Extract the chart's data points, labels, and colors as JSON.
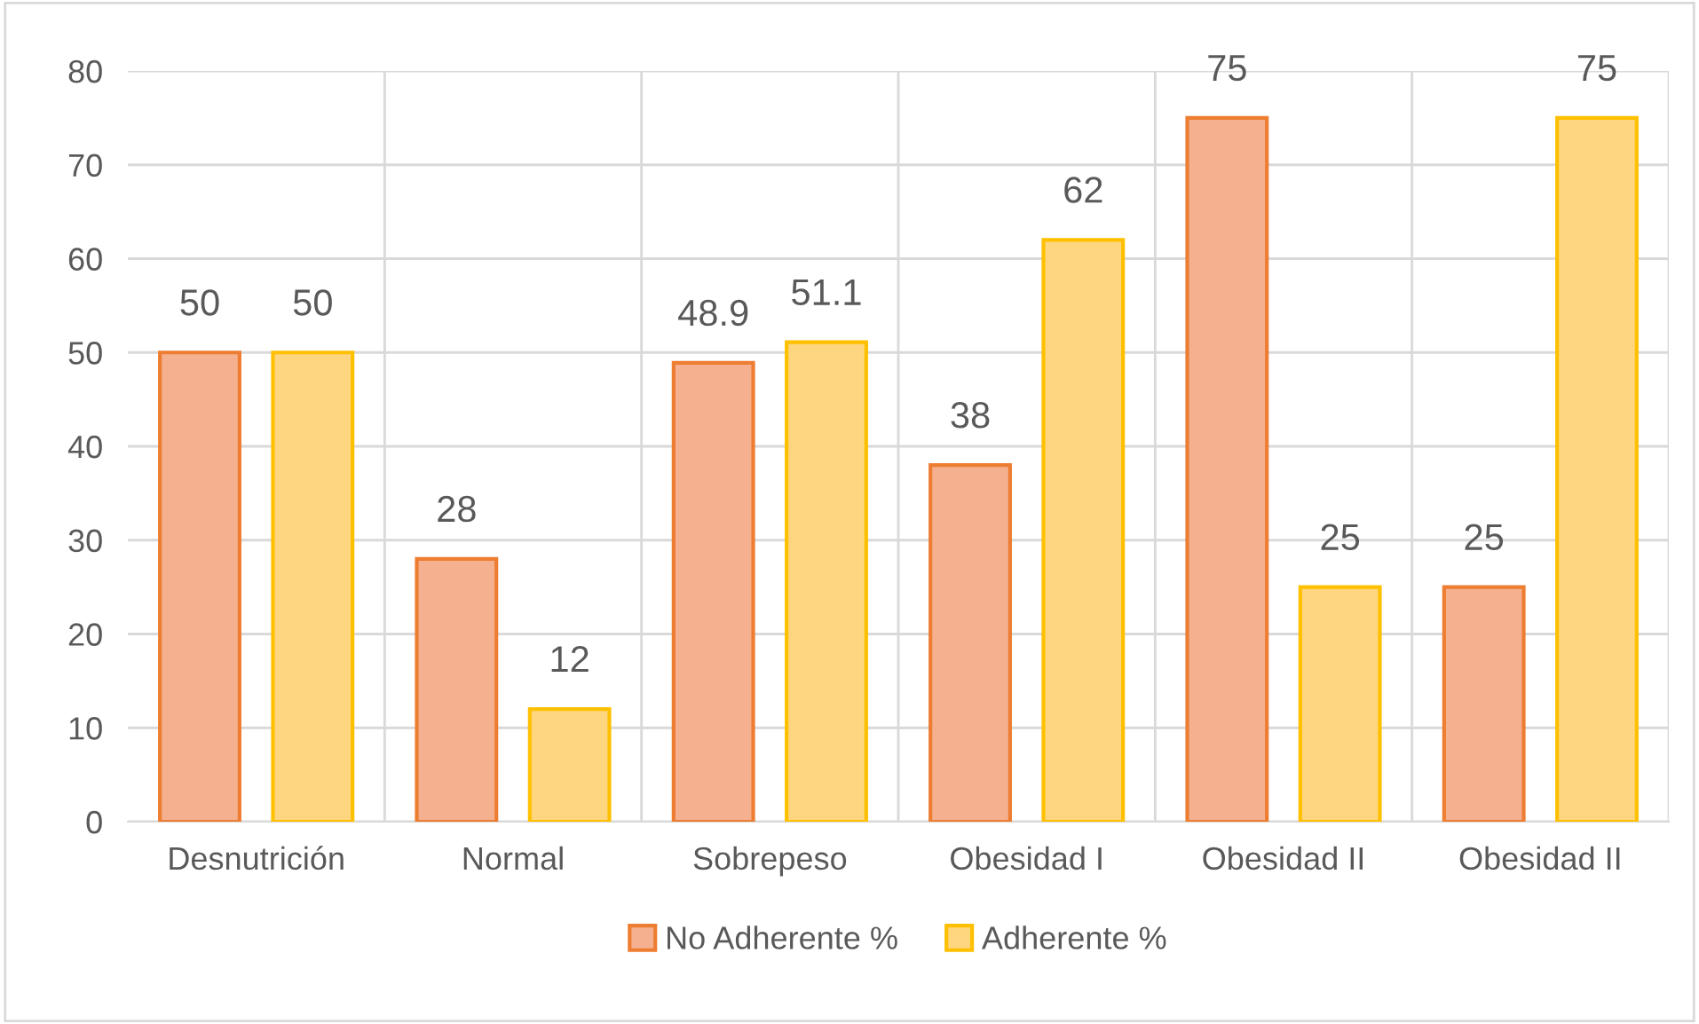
{
  "chart_data": {
    "type": "bar",
    "categories": [
      "Desnutrición",
      "Normal",
      "Sobrepeso",
      "Obesidad I",
      "Obesidad II",
      "Obesidad II"
    ],
    "series": [
      {
        "name": "No Adherente %",
        "color": "#f5b090",
        "values": [
          50,
          28,
          48.9,
          38,
          75,
          25
        ]
      },
      {
        "name": "Adherente %",
        "color": "#ffd680",
        "values": [
          50,
          12,
          51.1,
          62,
          25,
          75
        ]
      }
    ],
    "ylim": [
      0,
      80
    ],
    "yticks": [
      0,
      10,
      20,
      30,
      40,
      50,
      60,
      70,
      80
    ],
    "grid": true,
    "legend": "bottom",
    "data_labels": true
  }
}
